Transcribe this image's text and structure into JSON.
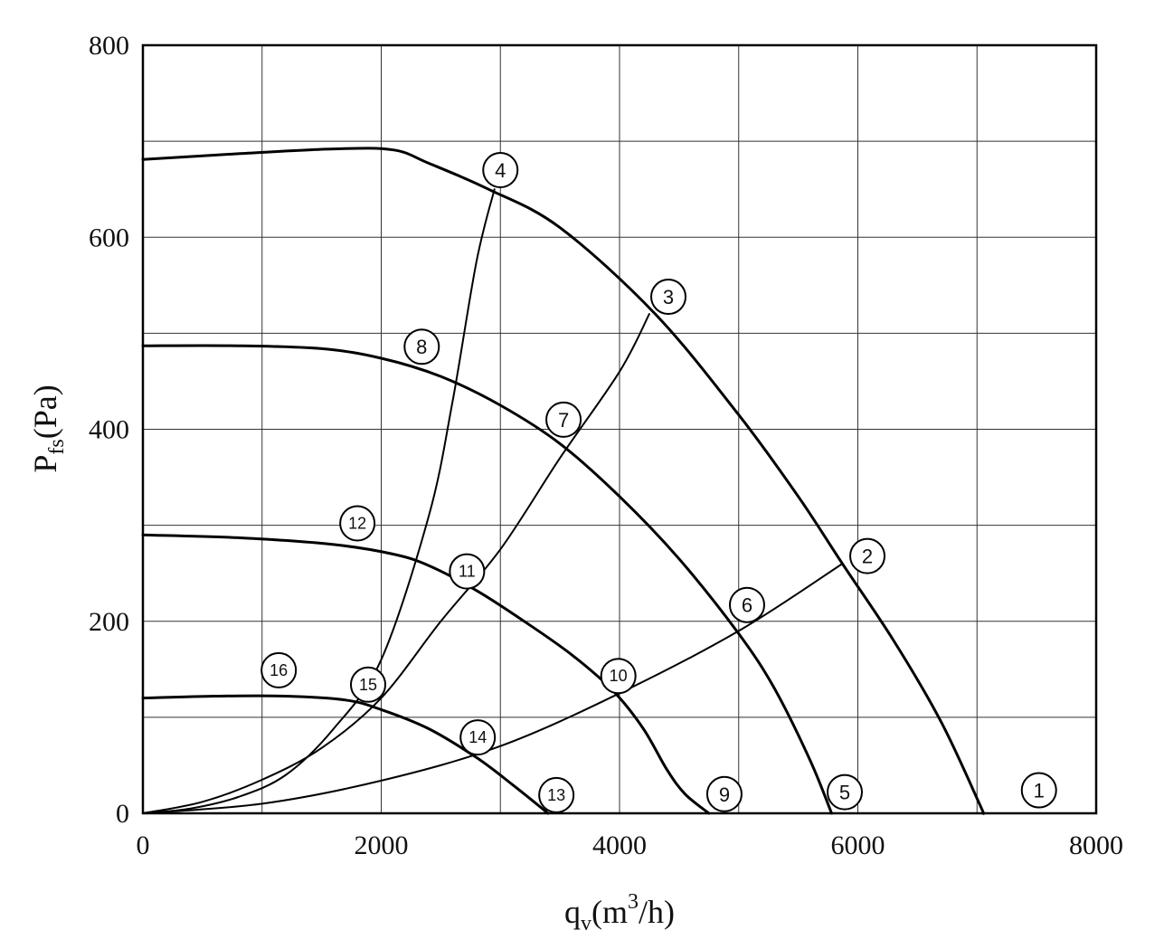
{
  "chart_data": {
    "type": "line",
    "xlabel": {
      "main": "q",
      "sub": "v",
      "unit_pre": "(m",
      "unit_sup": "3",
      "unit_post": "/h)"
    },
    "ylabel": {
      "main": "P",
      "sub": "fs",
      "unit": "(Pa)"
    },
    "xlim": [
      0,
      8000
    ],
    "ylim": [
      0,
      800
    ],
    "x_ticks": [
      0,
      2000,
      4000,
      6000,
      8000
    ],
    "y_ticks": [
      0,
      200,
      400,
      600,
      800
    ],
    "x_tick_labels": [
      "0",
      "2000",
      "4000",
      "6000",
      "8000"
    ],
    "y_tick_labels": [
      "0",
      "200",
      "400",
      "600",
      "800"
    ],
    "grid": true,
    "x_grid_step": 1000,
    "y_grid_step": 100,
    "fan_curves": [
      {
        "name": "fan-curve-max",
        "points": [
          [
            0,
            681
          ],
          [
            800,
            687
          ],
          [
            1600,
            692
          ],
          [
            2100,
            691
          ],
          [
            2400,
            677
          ],
          [
            2900,
            650
          ],
          [
            3500,
            610
          ],
          [
            4300,
            520
          ],
          [
            5000,
            415
          ],
          [
            5500,
            330
          ],
          [
            5870,
            260
          ],
          [
            6300,
            180
          ],
          [
            6700,
            95
          ],
          [
            7020,
            10
          ],
          [
            7050,
            0
          ]
        ]
      },
      {
        "name": "fan-curve-2",
        "points": [
          [
            0,
            487
          ],
          [
            800,
            487
          ],
          [
            1500,
            484
          ],
          [
            2000,
            474
          ],
          [
            2500,
            455
          ],
          [
            3000,
            425
          ],
          [
            3500,
            385
          ],
          [
            4000,
            330
          ],
          [
            4500,
            265
          ],
          [
            5000,
            187
          ],
          [
            5300,
            130
          ],
          [
            5600,
            55
          ],
          [
            5780,
            0
          ]
        ]
      },
      {
        "name": "fan-curve-3",
        "points": [
          [
            0,
            290
          ],
          [
            800,
            287
          ],
          [
            1600,
            280
          ],
          [
            2100,
            270
          ],
          [
            2400,
            258
          ],
          [
            2800,
            232
          ],
          [
            3200,
            200
          ],
          [
            3600,
            165
          ],
          [
            3950,
            127
          ],
          [
            4200,
            88
          ],
          [
            4400,
            45
          ],
          [
            4550,
            20
          ],
          [
            4750,
            0
          ]
        ]
      },
      {
        "name": "fan-curve-4",
        "points": [
          [
            0,
            120
          ],
          [
            600,
            122
          ],
          [
            1200,
            122
          ],
          [
            1700,
            118
          ],
          [
            2000,
            108
          ],
          [
            2400,
            88
          ],
          [
            2800,
            58
          ],
          [
            3100,
            30
          ],
          [
            3400,
            0
          ]
        ]
      }
    ],
    "system_curves": [
      {
        "name": "system-curve-a",
        "points": [
          [
            0,
            0
          ],
          [
            400,
            5
          ],
          [
            800,
            17
          ],
          [
            1200,
            40
          ],
          [
            1600,
            88
          ],
          [
            2000,
            160
          ],
          [
            2400,
            310
          ],
          [
            2600,
            430
          ],
          [
            2800,
            575
          ],
          [
            2950,
            650
          ]
        ]
      },
      {
        "name": "system-curve-b",
        "points": [
          [
            0,
            0
          ],
          [
            500,
            12
          ],
          [
            1000,
            35
          ],
          [
            1500,
            68
          ],
          [
            2000,
            120
          ],
          [
            2500,
            200
          ],
          [
            3000,
            275
          ],
          [
            3500,
            370
          ],
          [
            4000,
            460
          ],
          [
            4250,
            520
          ]
        ]
      },
      {
        "name": "system-curve-c",
        "points": [
          [
            0,
            0
          ],
          [
            1000,
            10
          ],
          [
            2000,
            34
          ],
          [
            3000,
            70
          ],
          [
            4000,
            125
          ],
          [
            5000,
            190
          ],
          [
            5870,
            260
          ]
        ]
      }
    ],
    "markers": [
      {
        "label": "1",
        "x": 7520,
        "y": 24
      },
      {
        "label": "2",
        "x": 6080,
        "y": 268
      },
      {
        "label": "3",
        "x": 4410,
        "y": 538
      },
      {
        "label": "4",
        "x": 3000,
        "y": 670
      },
      {
        "label": "5",
        "x": 5890,
        "y": 22
      },
      {
        "label": "6",
        "x": 5070,
        "y": 217
      },
      {
        "label": "7",
        "x": 3530,
        "y": 410
      },
      {
        "label": "8",
        "x": 2340,
        "y": 486
      },
      {
        "label": "9",
        "x": 4880,
        "y": 20
      },
      {
        "label": "10",
        "x": 3990,
        "y": 143
      },
      {
        "label": "11",
        "x": 2720,
        "y": 252
      },
      {
        "label": "12",
        "x": 1800,
        "y": 302
      },
      {
        "label": "13",
        "x": 3470,
        "y": 19
      },
      {
        "label": "14",
        "x": 2810,
        "y": 79
      },
      {
        "label": "15",
        "x": 1890,
        "y": 134
      },
      {
        "label": "16",
        "x": 1140,
        "y": 149
      }
    ]
  }
}
